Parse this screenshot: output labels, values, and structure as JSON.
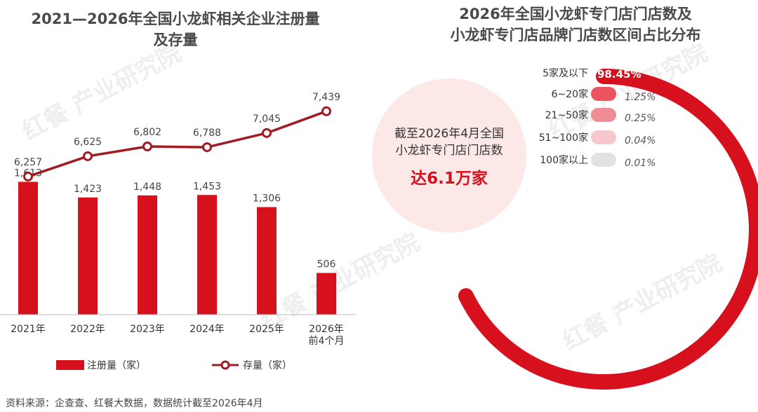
{
  "watermark": "红餐 产业研究院",
  "left_chart": {
    "title_line1": "2021—2026年全国小龙虾相关企业注册量",
    "title_line2": "及存量",
    "legend_bar": "注册量（家）",
    "legend_line": "存量（家）"
  },
  "right_chart": {
    "title_line1": "2026年全国小龙虾专门店门店数及",
    "title_line2": "小龙虾专门店品牌门店数区间占比分布",
    "center_line1": "截至2026年4月全国",
    "center_line2": "小龙虾专门店门店数",
    "center_highlight": "达6.1万家"
  },
  "source": "资料来源：企查查、红餐大数据，数据统计截至2026年4月",
  "colors": {
    "bar": "#d7101e",
    "line": "#a01c24",
    "title": "#4a4a4a"
  },
  "chart_data": [
    {
      "type": "bar",
      "title": "2021—2026年全国小龙虾相关企业注册量及存量",
      "categories": [
        "2021年",
        "2022年",
        "2023年",
        "2024年",
        "2025年",
        "2026年\n前4个月"
      ],
      "series": [
        {
          "name": "注册量（家）",
          "type": "bar",
          "values": [
            1613,
            1423,
            1448,
            1453,
            1306,
            506
          ]
        },
        {
          "name": "存量（家）",
          "type": "line",
          "values": [
            6257,
            6625,
            6802,
            6788,
            7045,
            7439
          ]
        }
      ]
    },
    {
      "type": "pie",
      "title": "2026年全国小龙虾专门店门店数及小龙虾专门店品牌门店数区间占比分布",
      "categories": [
        "5家及以下",
        "6~20家",
        "21~50家",
        "51~100家",
        "100家以上"
      ],
      "values": [
        98.45,
        1.25,
        0.25,
        0.04,
        0.01
      ],
      "value_labels": [
        "98.45%",
        "1.25%",
        "0.25%",
        "0.04%",
        "0.01%"
      ],
      "colors": [
        "#d7101e",
        "#ec5560",
        "#ef8d94",
        "#f6c8cb",
        "#e2e2e2"
      ]
    }
  ]
}
